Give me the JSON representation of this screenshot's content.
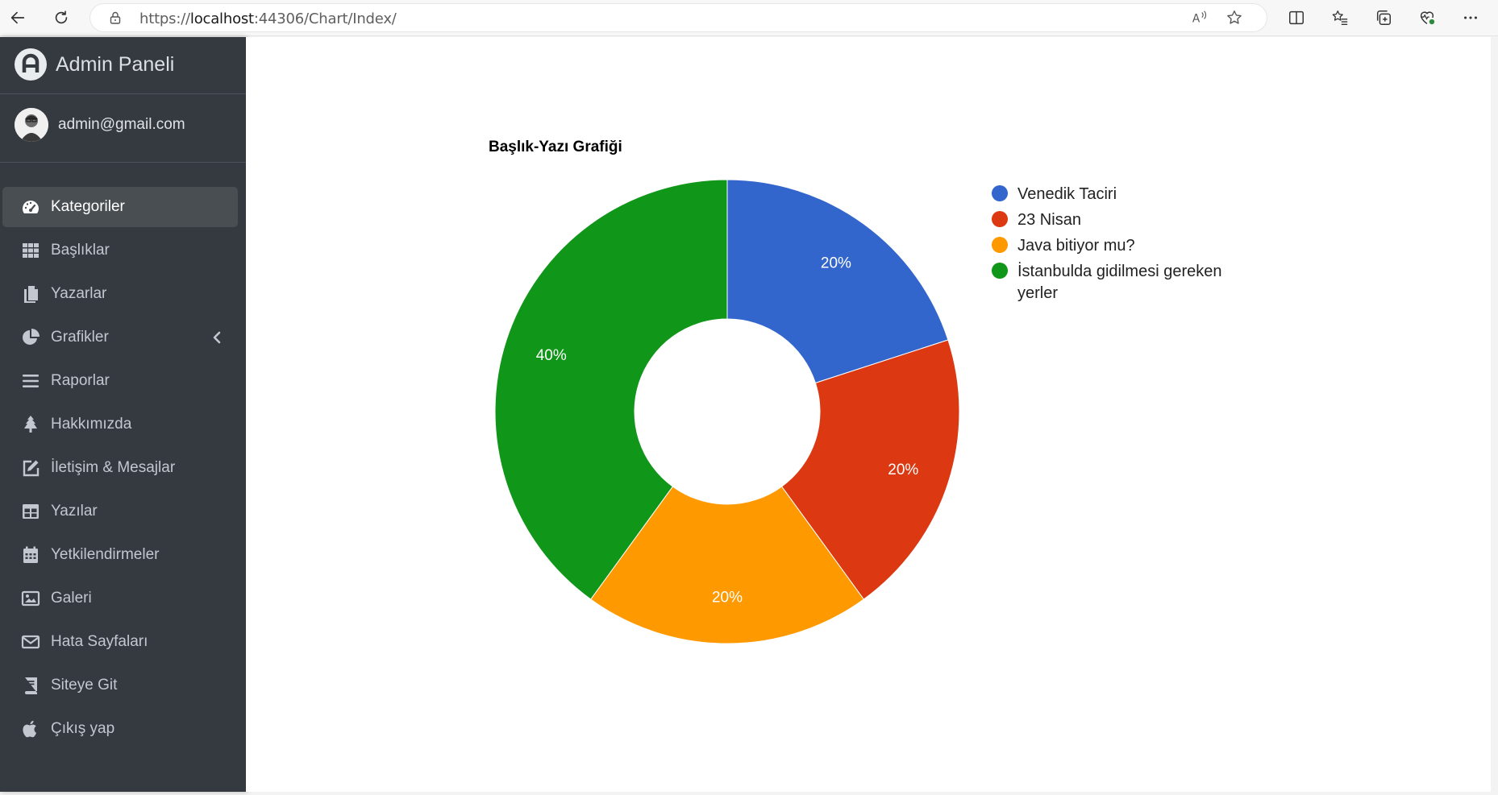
{
  "browser": {
    "url_prefix": "https://",
    "url_host": "localhost",
    "url_rest": ":44306/Chart/Index/"
  },
  "sidebar": {
    "brand": "Admin Paneli",
    "user": "admin@gmail.com",
    "items": [
      {
        "label": "Kategoriler",
        "icon": "tachometer-icon",
        "active": true
      },
      {
        "label": "Başlıklar",
        "icon": "grid-icon"
      },
      {
        "label": "Yazarlar",
        "icon": "copy-icon"
      },
      {
        "label": "Grafikler",
        "icon": "pie-chart-icon",
        "has_arrow": true
      },
      {
        "label": "Raporlar",
        "icon": "bars-icon"
      },
      {
        "label": "Hakkımızda",
        "icon": "tree-icon"
      },
      {
        "label": "İletişim & Mesajlar",
        "icon": "edit-icon"
      },
      {
        "label": "Yazılar",
        "icon": "table-icon"
      },
      {
        "label": "Yetkilendirmeler",
        "icon": "calendar-icon"
      },
      {
        "label": "Galeri",
        "icon": "image-icon"
      },
      {
        "label": "Hata Sayfaları",
        "icon": "envelope-icon"
      },
      {
        "label": "Siteye Git",
        "icon": "book-icon"
      },
      {
        "label": "Çıkış yap",
        "icon": "apple-icon"
      }
    ]
  },
  "chart_data": {
    "type": "pie",
    "donut": true,
    "title": "Başlık-Yazı Grafiği",
    "categories": [
      "Venedik Taciri",
      "23 Nisan",
      "Java bitiyor mu?",
      "İstanbulda gidilmesi gereken yerler"
    ],
    "values": [
      20,
      20,
      20,
      40
    ],
    "value_labels": [
      "20%",
      "20%",
      "20%",
      "40%"
    ],
    "colors": [
      "#3366cc",
      "#dc3912",
      "#ff9900",
      "#109618"
    ],
    "legend_position": "right"
  }
}
